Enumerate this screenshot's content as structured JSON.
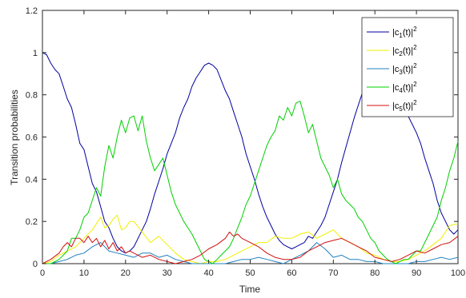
{
  "chart_data": {
    "type": "line",
    "xlabel": "Time",
    "ylabel": "Transition probabilities",
    "xlim": [
      0,
      100
    ],
    "ylim": [
      0,
      1.2
    ],
    "xticks": [
      0,
      10,
      20,
      30,
      40,
      50,
      60,
      70,
      80,
      90,
      100
    ],
    "yticks": [
      0,
      0.2,
      0.4,
      0.6,
      0.8,
      1,
      1.2
    ],
    "legend_position": "top-right",
    "grid": false,
    "series": [
      {
        "name": "|c1(t)|2",
        "legend": {
          "base": "|c",
          "sub": "1",
          "mid": "(t)|",
          "sup": "2"
        },
        "color": "#0000a0",
        "x": [
          0,
          1,
          2,
          3,
          4,
          5,
          6,
          7,
          8,
          9,
          10,
          11,
          12,
          13,
          14,
          15,
          16,
          17,
          18,
          19,
          20,
          21,
          22,
          23,
          24,
          25,
          26,
          27,
          28,
          29,
          30,
          31,
          32,
          33,
          34,
          35,
          36,
          37,
          38,
          39,
          40,
          41,
          42,
          43,
          44,
          45,
          46,
          47,
          48,
          49,
          50,
          51,
          52,
          53,
          54,
          55,
          56,
          57,
          58,
          59,
          60,
          61,
          62,
          63,
          64,
          65,
          66,
          67,
          68,
          69,
          70,
          71,
          72,
          73,
          74,
          75,
          76,
          77,
          78,
          79,
          80,
          81,
          82,
          83,
          84,
          85,
          86,
          87,
          88,
          89,
          90,
          91,
          92,
          93,
          94,
          95,
          96,
          97,
          98,
          99,
          100
        ],
        "values": [
          1.0,
          0.99,
          0.95,
          0.92,
          0.9,
          0.84,
          0.78,
          0.74,
          0.66,
          0.57,
          0.54,
          0.46,
          0.38,
          0.34,
          0.27,
          0.2,
          0.17,
          0.12,
          0.08,
          0.06,
          0.05,
          0.06,
          0.08,
          0.12,
          0.16,
          0.2,
          0.26,
          0.33,
          0.39,
          0.45,
          0.52,
          0.57,
          0.62,
          0.69,
          0.74,
          0.78,
          0.84,
          0.88,
          0.91,
          0.94,
          0.95,
          0.94,
          0.92,
          0.87,
          0.82,
          0.78,
          0.72,
          0.66,
          0.6,
          0.52,
          0.46,
          0.4,
          0.33,
          0.27,
          0.22,
          0.18,
          0.14,
          0.11,
          0.09,
          0.08,
          0.07,
          0.08,
          0.09,
          0.1,
          0.13,
          0.12,
          0.15,
          0.18,
          0.22,
          0.28,
          0.34,
          0.4,
          0.48,
          0.55,
          0.62,
          0.69,
          0.75,
          0.81,
          0.87,
          0.92,
          0.95,
          0.97,
          0.96,
          0.94,
          0.9,
          0.84,
          0.8,
          0.75,
          0.7,
          0.66,
          0.62,
          0.57,
          0.5,
          0.44,
          0.38,
          0.3,
          0.24,
          0.2,
          0.16,
          0.14,
          0.16
        ]
      },
      {
        "name": "|c2(t)|2",
        "legend": {
          "base": "|c",
          "sub": "2",
          "mid": "(t)|",
          "sup": "2"
        },
        "color": "#f0f000",
        "x": [
          0,
          2,
          4,
          6,
          8,
          10,
          12,
          13,
          14,
          15,
          16,
          17,
          18,
          19,
          20,
          21,
          22,
          24,
          26,
          28,
          30,
          32,
          34,
          36,
          38,
          40,
          42,
          44,
          46,
          48,
          50,
          52,
          54,
          56,
          58,
          60,
          62,
          64,
          66,
          68,
          70,
          72,
          74,
          76,
          78,
          80,
          82,
          84,
          86,
          88,
          90,
          92,
          94,
          96,
          98,
          100
        ],
        "values": [
          0.0,
          0.01,
          0.04,
          0.06,
          0.08,
          0.12,
          0.16,
          0.19,
          0.22,
          0.17,
          0.18,
          0.21,
          0.23,
          0.16,
          0.17,
          0.2,
          0.2,
          0.15,
          0.1,
          0.13,
          0.09,
          0.05,
          0.02,
          0.01,
          0.0,
          0.01,
          0.01,
          0.02,
          0.04,
          0.06,
          0.08,
          0.1,
          0.1,
          0.13,
          0.12,
          0.12,
          0.14,
          0.15,
          0.12,
          0.14,
          0.16,
          0.12,
          0.1,
          0.08,
          0.05,
          0.04,
          0.02,
          0.01,
          0.01,
          0.02,
          0.04,
          0.06,
          0.09,
          0.12,
          0.18,
          0.19
        ]
      },
      {
        "name": "|c3(t)|2",
        "legend": {
          "base": "|c",
          "sub": "3",
          "mid": "(t)|",
          "sup": "2"
        },
        "color": "#2080c0",
        "x": [
          0,
          2,
          4,
          6,
          8,
          10,
          12,
          13,
          14,
          16,
          18,
          20,
          22,
          24,
          26,
          28,
          30,
          32,
          34,
          36,
          38,
          40,
          42,
          44,
          46,
          48,
          50,
          52,
          54,
          56,
          58,
          60,
          62,
          64,
          66,
          68,
          70,
          72,
          74,
          76,
          78,
          80,
          82,
          84,
          86,
          88,
          90,
          92,
          94,
          96,
          98,
          100
        ],
        "values": [
          0.0,
          0.0,
          0.01,
          0.02,
          0.04,
          0.05,
          0.08,
          0.09,
          0.1,
          0.06,
          0.05,
          0.04,
          0.03,
          0.05,
          0.05,
          0.03,
          0.04,
          0.02,
          0.01,
          0.0,
          0.0,
          0.0,
          0.0,
          0.0,
          0.01,
          0.02,
          0.02,
          0.03,
          0.02,
          0.01,
          0.0,
          0.02,
          0.04,
          0.06,
          0.1,
          0.07,
          0.03,
          0.04,
          0.02,
          0.02,
          0.01,
          0.01,
          0.0,
          0.0,
          0.0,
          0.0,
          0.01,
          0.01,
          0.02,
          0.03,
          0.02,
          0.03
        ]
      },
      {
        "name": "|c4(t)|2",
        "legend": {
          "base": "|c",
          "sub": "4",
          "mid": "(t)|",
          "sup": "2"
        },
        "color": "#00d000",
        "x": [
          0,
          2,
          4,
          6,
          7,
          8,
          9,
          10,
          11,
          12,
          13,
          14,
          15,
          16,
          17,
          18,
          19,
          20,
          21,
          22,
          23,
          24,
          25,
          26,
          27,
          28,
          29,
          30,
          31,
          32,
          33,
          34,
          35,
          36,
          37,
          38,
          39,
          40,
          41,
          42,
          43,
          44,
          45,
          46,
          47,
          48,
          49,
          50,
          51,
          52,
          53,
          54,
          55,
          56,
          57,
          58,
          59,
          60,
          61,
          62,
          63,
          64,
          65,
          66,
          67,
          68,
          69,
          70,
          71,
          72,
          73,
          74,
          75,
          76,
          77,
          78,
          79,
          80,
          81,
          82,
          83,
          84,
          85,
          86,
          87,
          88,
          89,
          90,
          91,
          92,
          93,
          94,
          95,
          96,
          97,
          98,
          99,
          100
        ],
        "values": [
          0.0,
          0.0,
          0.02,
          0.06,
          0.12,
          0.12,
          0.16,
          0.22,
          0.24,
          0.3,
          0.36,
          0.32,
          0.46,
          0.56,
          0.5,
          0.6,
          0.68,
          0.62,
          0.69,
          0.7,
          0.63,
          0.7,
          0.58,
          0.5,
          0.44,
          0.47,
          0.5,
          0.42,
          0.34,
          0.28,
          0.24,
          0.2,
          0.17,
          0.14,
          0.1,
          0.06,
          0.02,
          0.01,
          0.0,
          0.02,
          0.04,
          0.06,
          0.08,
          0.12,
          0.17,
          0.22,
          0.28,
          0.32,
          0.38,
          0.44,
          0.5,
          0.56,
          0.6,
          0.63,
          0.7,
          0.68,
          0.74,
          0.7,
          0.76,
          0.77,
          0.7,
          0.62,
          0.66,
          0.58,
          0.5,
          0.46,
          0.42,
          0.36,
          0.4,
          0.33,
          0.3,
          0.28,
          0.26,
          0.22,
          0.2,
          0.16,
          0.12,
          0.1,
          0.06,
          0.04,
          0.02,
          0.01,
          0.0,
          0.01,
          0.02,
          0.02,
          0.04,
          0.06,
          0.06,
          0.1,
          0.14,
          0.18,
          0.22,
          0.3,
          0.36,
          0.44,
          0.5,
          0.58
        ]
      },
      {
        "name": "|c5(t)|2",
        "legend": {
          "base": "|c",
          "sub": "5",
          "mid": "(t)|",
          "sup": "2"
        },
        "color": "#d01010",
        "x": [
          0,
          2,
          4,
          5,
          6,
          7,
          8,
          9,
          10,
          11,
          12,
          13,
          14,
          15,
          16,
          17,
          18,
          19,
          20,
          21,
          22,
          24,
          26,
          28,
          30,
          32,
          34,
          36,
          38,
          40,
          42,
          44,
          45,
          46,
          47,
          48,
          50,
          52,
          54,
          56,
          58,
          60,
          62,
          64,
          66,
          68,
          70,
          72,
          74,
          76,
          78,
          80,
          82,
          84,
          86,
          88,
          90,
          92,
          94,
          96,
          98,
          100
        ],
        "values": [
          0.0,
          0.02,
          0.05,
          0.08,
          0.1,
          0.08,
          0.12,
          0.12,
          0.1,
          0.13,
          0.1,
          0.12,
          0.08,
          0.11,
          0.07,
          0.1,
          0.06,
          0.08,
          0.05,
          0.06,
          0.05,
          0.03,
          0.04,
          0.02,
          0.01,
          0.0,
          0.01,
          0.02,
          0.04,
          0.07,
          0.09,
          0.12,
          0.15,
          0.13,
          0.14,
          0.12,
          0.1,
          0.08,
          0.05,
          0.03,
          0.02,
          0.02,
          0.03,
          0.06,
          0.08,
          0.1,
          0.11,
          0.12,
          0.1,
          0.08,
          0.06,
          0.03,
          0.02,
          0.01,
          0.02,
          0.04,
          0.06,
          0.05,
          0.07,
          0.09,
          0.1,
          0.13
        ]
      }
    ]
  }
}
